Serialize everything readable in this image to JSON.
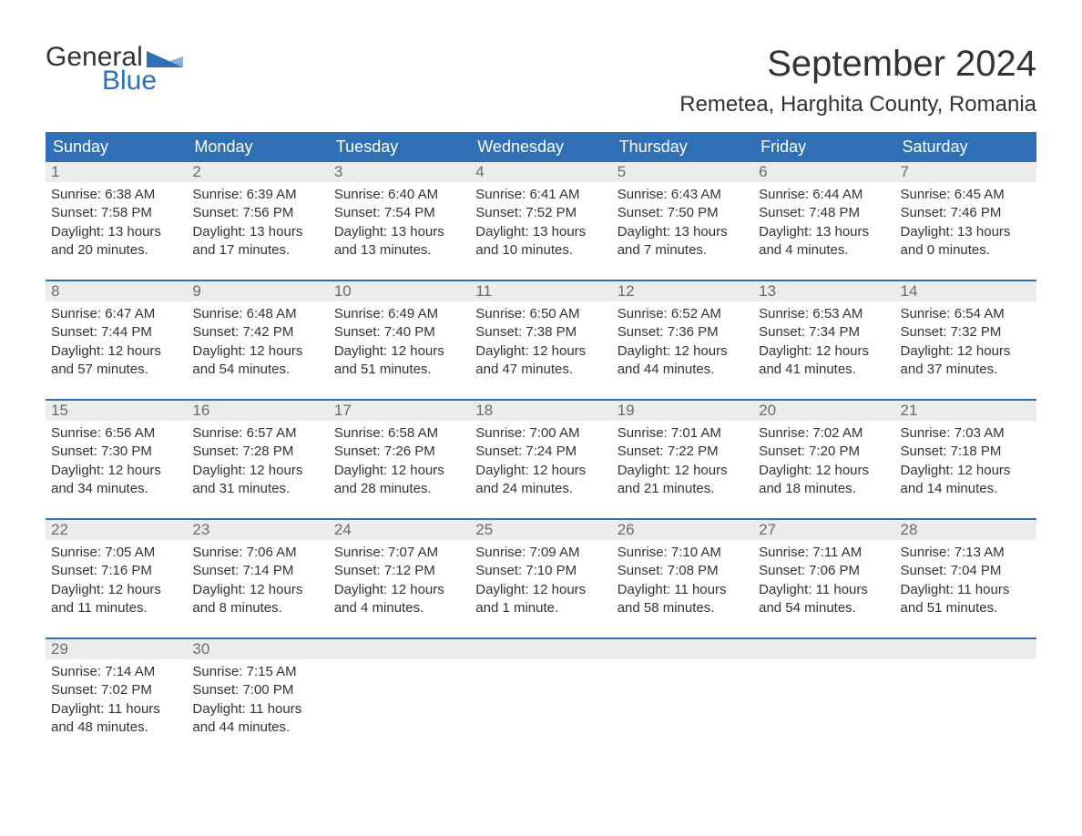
{
  "logo": {
    "general": "General",
    "blue": "Blue",
    "triangle_color": "#2f6fb5"
  },
  "title": "September 2024",
  "location": "Remetea, Harghita County, Romania",
  "colors": {
    "header_bg": "#2f6fb5",
    "header_text": "#ffffff",
    "daynum_bg": "#ececec",
    "daynum_text": "#6b6b6b",
    "body_text": "#333333",
    "rule": "#2f6fb5",
    "page_bg": "#ffffff"
  },
  "day_names": [
    "Sunday",
    "Monday",
    "Tuesday",
    "Wednesday",
    "Thursday",
    "Friday",
    "Saturday"
  ],
  "labels": {
    "sunrise": "Sunrise:",
    "sunset": "Sunset:",
    "daylight": "Daylight:"
  },
  "weeks": [
    [
      {
        "n": "1",
        "sunrise": "6:38 AM",
        "sunset": "7:58 PM",
        "daylight": "13 hours and 20 minutes."
      },
      {
        "n": "2",
        "sunrise": "6:39 AM",
        "sunset": "7:56 PM",
        "daylight": "13 hours and 17 minutes."
      },
      {
        "n": "3",
        "sunrise": "6:40 AM",
        "sunset": "7:54 PM",
        "daylight": "13 hours and 13 minutes."
      },
      {
        "n": "4",
        "sunrise": "6:41 AM",
        "sunset": "7:52 PM",
        "daylight": "13 hours and 10 minutes."
      },
      {
        "n": "5",
        "sunrise": "6:43 AM",
        "sunset": "7:50 PM",
        "daylight": "13 hours and 7 minutes."
      },
      {
        "n": "6",
        "sunrise": "6:44 AM",
        "sunset": "7:48 PM",
        "daylight": "13 hours and 4 minutes."
      },
      {
        "n": "7",
        "sunrise": "6:45 AM",
        "sunset": "7:46 PM",
        "daylight": "13 hours and 0 minutes."
      }
    ],
    [
      {
        "n": "8",
        "sunrise": "6:47 AM",
        "sunset": "7:44 PM",
        "daylight": "12 hours and 57 minutes."
      },
      {
        "n": "9",
        "sunrise": "6:48 AM",
        "sunset": "7:42 PM",
        "daylight": "12 hours and 54 minutes."
      },
      {
        "n": "10",
        "sunrise": "6:49 AM",
        "sunset": "7:40 PM",
        "daylight": "12 hours and 51 minutes."
      },
      {
        "n": "11",
        "sunrise": "6:50 AM",
        "sunset": "7:38 PM",
        "daylight": "12 hours and 47 minutes."
      },
      {
        "n": "12",
        "sunrise": "6:52 AM",
        "sunset": "7:36 PM",
        "daylight": "12 hours and 44 minutes."
      },
      {
        "n": "13",
        "sunrise": "6:53 AM",
        "sunset": "7:34 PM",
        "daylight": "12 hours and 41 minutes."
      },
      {
        "n": "14",
        "sunrise": "6:54 AM",
        "sunset": "7:32 PM",
        "daylight": "12 hours and 37 minutes."
      }
    ],
    [
      {
        "n": "15",
        "sunrise": "6:56 AM",
        "sunset": "7:30 PM",
        "daylight": "12 hours and 34 minutes."
      },
      {
        "n": "16",
        "sunrise": "6:57 AM",
        "sunset": "7:28 PM",
        "daylight": "12 hours and 31 minutes."
      },
      {
        "n": "17",
        "sunrise": "6:58 AM",
        "sunset": "7:26 PM",
        "daylight": "12 hours and 28 minutes."
      },
      {
        "n": "18",
        "sunrise": "7:00 AM",
        "sunset": "7:24 PM",
        "daylight": "12 hours and 24 minutes."
      },
      {
        "n": "19",
        "sunrise": "7:01 AM",
        "sunset": "7:22 PM",
        "daylight": "12 hours and 21 minutes."
      },
      {
        "n": "20",
        "sunrise": "7:02 AM",
        "sunset": "7:20 PM",
        "daylight": "12 hours and 18 minutes."
      },
      {
        "n": "21",
        "sunrise": "7:03 AM",
        "sunset": "7:18 PM",
        "daylight": "12 hours and 14 minutes."
      }
    ],
    [
      {
        "n": "22",
        "sunrise": "7:05 AM",
        "sunset": "7:16 PM",
        "daylight": "12 hours and 11 minutes."
      },
      {
        "n": "23",
        "sunrise": "7:06 AM",
        "sunset": "7:14 PM",
        "daylight": "12 hours and 8 minutes."
      },
      {
        "n": "24",
        "sunrise": "7:07 AM",
        "sunset": "7:12 PM",
        "daylight": "12 hours and 4 minutes."
      },
      {
        "n": "25",
        "sunrise": "7:09 AM",
        "sunset": "7:10 PM",
        "daylight": "12 hours and 1 minute."
      },
      {
        "n": "26",
        "sunrise": "7:10 AM",
        "sunset": "7:08 PM",
        "daylight": "11 hours and 58 minutes."
      },
      {
        "n": "27",
        "sunrise": "7:11 AM",
        "sunset": "7:06 PM",
        "daylight": "11 hours and 54 minutes."
      },
      {
        "n": "28",
        "sunrise": "7:13 AM",
        "sunset": "7:04 PM",
        "daylight": "11 hours and 51 minutes."
      }
    ],
    [
      {
        "n": "29",
        "sunrise": "7:14 AM",
        "sunset": "7:02 PM",
        "daylight": "11 hours and 48 minutes."
      },
      {
        "n": "30",
        "sunrise": "7:15 AM",
        "sunset": "7:00 PM",
        "daylight": "11 hours and 44 minutes."
      },
      {
        "empty": true
      },
      {
        "empty": true
      },
      {
        "empty": true
      },
      {
        "empty": true
      },
      {
        "empty": true
      }
    ]
  ]
}
